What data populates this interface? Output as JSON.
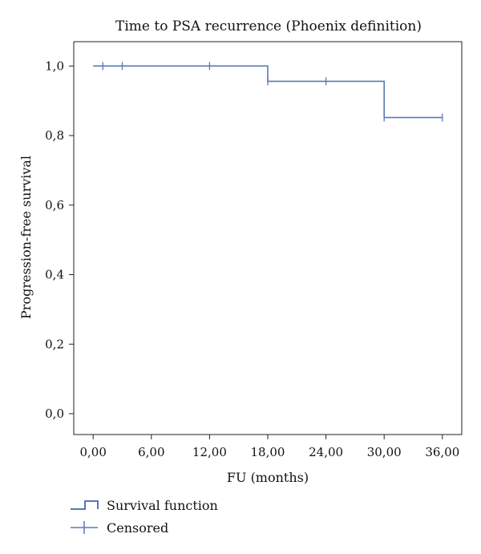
{
  "chart_data": {
    "type": "line",
    "title": "Time to PSA recurrence (Phoenix definition)",
    "xlabel": "FU (months)",
    "ylabel": "Progression-free survival",
    "x_ticks": [
      {
        "value": 0,
        "label": "0,00"
      },
      {
        "value": 6,
        "label": "6,00"
      },
      {
        "value": 12,
        "label": "12,00"
      },
      {
        "value": 18,
        "label": "18,00"
      },
      {
        "value": 24,
        "label": "24,00"
      },
      {
        "value": 30,
        "label": "30,00"
      },
      {
        "value": 36,
        "label": "36,00"
      }
    ],
    "y_ticks": [
      {
        "value": 0.0,
        "label": "0,0"
      },
      {
        "value": 0.2,
        "label": "0,2"
      },
      {
        "value": 0.4,
        "label": "0,4"
      },
      {
        "value": 0.6,
        "label": "0,6"
      },
      {
        "value": 0.8,
        "label": "0,8"
      },
      {
        "value": 1.0,
        "label": "1,0"
      }
    ],
    "xlim": [
      -2,
      38
    ],
    "ylim": [
      -0.06,
      1.07
    ],
    "grid": false,
    "legend_position": "bottom-left",
    "series": [
      {
        "name": "Survival function",
        "kind": "step",
        "color": "#5b78b5",
        "steps": [
          {
            "x": 0,
            "y": 1.0
          },
          {
            "x": 18,
            "y": 0.956
          },
          {
            "x": 30,
            "y": 0.852
          },
          {
            "x": 36,
            "y": 0.852
          }
        ]
      },
      {
        "name": "Censored",
        "kind": "censor-marks",
        "color": "#5b78b5",
        "points": [
          {
            "x": 1,
            "y": 1.0
          },
          {
            "x": 3,
            "y": 1.0
          },
          {
            "x": 12,
            "y": 1.0
          },
          {
            "x": 18,
            "y": 0.956
          },
          {
            "x": 24,
            "y": 0.956
          },
          {
            "x": 30,
            "y": 0.852
          },
          {
            "x": 36,
            "y": 0.852
          }
        ]
      }
    ]
  }
}
